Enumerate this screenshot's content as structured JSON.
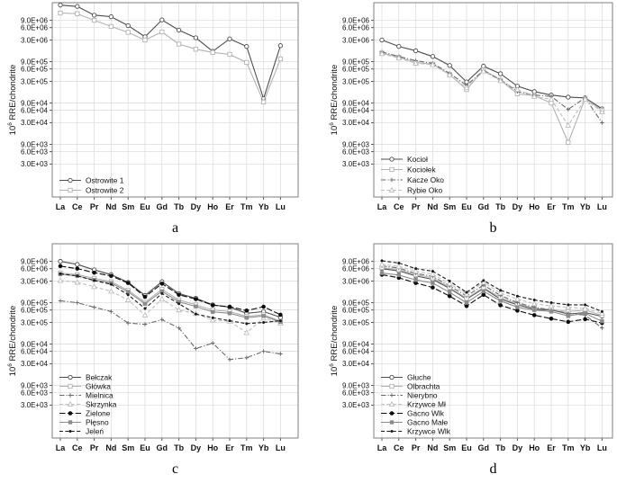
{
  "chart_data": {
    "type": "line",
    "scale": "log-y",
    "grid": true,
    "ylabel": {
      "base": "10",
      "sup": "6",
      "rest": " RRE/chondrite"
    },
    "categories": [
      "La",
      "Ce",
      "Pr",
      "Nd",
      "Sm",
      "Eu",
      "Gd",
      "Tb",
      "Dy",
      "Ho",
      "Er",
      "Tm",
      "Yb",
      "Lu"
    ],
    "y_tick_labels": [
      "9.0E+06",
      "6.0E+06",
      "3.0E+06",
      "9.0E+05",
      "6.0E+05",
      "3.0E+05",
      "9.0E+04",
      "6.0E+04",
      "3.0E+04",
      "9.0E+03",
      "6.0E+03",
      "3.0E+03"
    ],
    "y_axis_range": [
      480,
      24000000
    ],
    "legend_position": "bottom-left-inside",
    "colors": {
      "dark_gray": "#4d4d4d",
      "light_gray": "#b2b2b2",
      "mid_gray": "#6b6b6b",
      "pale_gray": "#bfbfbf",
      "black": "#0d0d0d",
      "filled_gray": "#8c8c8c",
      "grid": "#d9d9d9",
      "border": "#7f7f7f"
    },
    "panels": [
      {
        "caption": "a",
        "series": [
          {
            "name": "Ostrowite 1",
            "color": "#4d4d4d",
            "line": "solid",
            "marker": "circle-open",
            "values": [
              21000000.0,
              19500000.0,
              12000000.0,
              11000000.0,
              6700000.0,
              3600000.0,
              9200000.0,
              5200000.0,
              3400000.0,
              1600000.0,
              3200000.0,
              2100000.0,
              115000.0,
              2200000.0
            ]
          },
          {
            "name": "Ostrowite 2",
            "color": "#b2b2b2",
            "line": "solid",
            "marker": "square-open",
            "values": [
              13500000.0,
              13000000.0,
              9000000.0,
              6400000.0,
              4600000.0,
              3000000.0,
              4700000.0,
              2400000.0,
              1800000.0,
              1500000.0,
              1350000.0,
              860000.0,
              95000.0,
              1050000.0
            ]
          }
        ]
      },
      {
        "caption": "b",
        "series": [
          {
            "name": "Kocioł",
            "color": "#4d4d4d",
            "line": "solid",
            "marker": "circle-open",
            "values": [
              3000000.0,
              2100000.0,
              1650000.0,
              1200000.0,
              730000.0,
              290000.0,
              700000.0,
              460000.0,
              230000.0,
              170000.0,
              140000.0,
              125000.0,
              120000.0,
              65000.0
            ]
          },
          {
            "name": "Kociołek",
            "color": "#b2b2b2",
            "line": "solid",
            "marker": "square-open",
            "values": [
              1450000.0,
              1150000.0,
              860000.0,
              780000.0,
              440000.0,
              190000.0,
              570000.0,
              320000.0,
              150000.0,
              135000.0,
              90000.0,
              10000.0,
              115000.0,
              60000.0
            ]
          },
          {
            "name": "Kacze Oko",
            "color": "#6b6b6b",
            "line": "dashdot",
            "marker": "plus",
            "values": [
              1550000.0,
              1200000.0,
              950000.0,
              820000.0,
              470000.0,
              240000.0,
              550000.0,
              330000.0,
              170000.0,
              140000.0,
              130000.0,
              63000.0,
              120000.0,
              30000.0
            ]
          },
          {
            "name": "Rybie Oko",
            "color": "#bfbfbf",
            "line": "dashed",
            "marker": "triangle-open",
            "values": [
              1400000.0,
              1100000.0,
              820000.0,
              760000.0,
              430000.0,
              210000.0,
              530000.0,
              310000.0,
              190000.0,
              130000.0,
              110000.0,
              26000.0,
              110000.0,
              55000.0
            ]
          }
        ]
      },
      {
        "caption": "c",
        "series": [
          {
            "name": "Bełczak",
            "color": "#4d4d4d",
            "line": "solid",
            "marker": "circle-open",
            "values": [
              9000000.0,
              7600000.0,
              5600000.0,
              4300000.0,
              2800000.0,
              1350000.0,
              2900000.0,
              1500000.0,
              1150000.0,
              800000.0,
              700000.0,
              500000.0,
              550000.0,
              400000.0
            ]
          },
          {
            "name": "Główka",
            "color": "#b2b2b2",
            "line": "solid",
            "marker": "square-open",
            "values": [
              4700000.0,
              4300000.0,
              3500000.0,
              2900000.0,
              1800000.0,
              920000.0,
              1900000.0,
              1050000.0,
              800000.0,
              600000.0,
              550000.0,
              420000.0,
              460000.0,
              320000.0
            ]
          },
          {
            "name": "Mielnica",
            "color": "#6b6b6b",
            "line": "dashdot",
            "marker": "plus",
            "values": [
              1000000.0,
              900000.0,
              700000.0,
              550000.0,
              290000.0,
              270000.0,
              350000.0,
              220000.0,
              70000.0,
              95000.0,
              38000.0,
              42000.0,
              60000.0,
              52000.0
            ]
          },
          {
            "name": "Skrzynka",
            "color": "#bfbfbf",
            "line": "dashed",
            "marker": "triangle-open",
            "values": [
              3100000.0,
              2800000.0,
              2200000.0,
              1700000.0,
              1050000.0,
              450000.0,
              1100000.0,
              600000.0,
              490000.0,
              340000.0,
              320000.0,
              170000.0,
              380000.0,
              290000.0
            ]
          },
          {
            "name": "Zielone",
            "color": "#0d0d0d",
            "line": "longdash",
            "marker": "circle-filled",
            "values": [
              6900000.0,
              6000000.0,
              4800000.0,
              4000000.0,
              2700000.0,
              1250000.0,
              2600000.0,
              1400000.0,
              1100000.0,
              780000.0,
              720000.0,
              580000.0,
              720000.0,
              460000.0
            ]
          },
          {
            "name": "Płęsno",
            "color": "#8c8c8c",
            "line": "solid",
            "marker": "square-filled",
            "values": [
              4400000.0,
              4000000.0,
              3200000.0,
              2700000.0,
              1650000.0,
              850000.0,
              1700000.0,
              950000.0,
              730000.0,
              540000.0,
              500000.0,
              390000.0,
              430000.0,
              310000.0
            ]
          },
          {
            "name": "Jeleń",
            "color": "#1a1a1a",
            "line": "dashed",
            "marker": "dot",
            "values": [
              4500000.0,
              4000000.0,
              3100000.0,
              2500000.0,
              1400000.0,
              650000.0,
              1500000.0,
              850000.0,
              480000.0,
              390000.0,
              330000.0,
              280000.0,
              300000.0,
              330000.0
            ]
          }
        ]
      },
      {
        "caption": "d",
        "series": [
          {
            "name": "Głuche",
            "color": "#4d4d4d",
            "line": "solid",
            "marker": "circle-open",
            "values": [
              6000000.0,
              5300000.0,
              4000000.0,
              3300000.0,
              2000000.0,
              1100000.0,
              2000000.0,
              1100000.0,
              800000.0,
              630000.0,
              600000.0,
              480000.0,
              520000.0,
              420000.0
            ]
          },
          {
            "name": "Olbrachta",
            "color": "#b2b2b2",
            "line": "solid",
            "marker": "square-open",
            "values": [
              6400000.0,
              5700000.0,
              4300000.0,
              3600000.0,
              2100000.0,
              1150000.0,
              2100000.0,
              1200000.0,
              850000.0,
              660000.0,
              620000.0,
              550000.0,
              600000.0,
              440000.0
            ]
          },
          {
            "name": "Nierybno",
            "color": "#6b6b6b",
            "line": "dashdot",
            "marker": "plus",
            "values": [
              7000000.0,
              6200000.0,
              4600000.0,
              3900000.0,
              2300000.0,
              1300000.0,
              2400000.0,
              1350000.0,
              900000.0,
              700000.0,
              600000.0,
              500000.0,
              450000.0,
              220000.0
            ]
          },
          {
            "name": "Krzywce Mł",
            "color": "#bfbfbf",
            "line": "dashed",
            "marker": "triangle-open",
            "values": [
              7600000.0,
              6800000.0,
              5200000.0,
              4400000.0,
              2600000.0,
              1450000.0,
              2800000.0,
              1550000.0,
              1100000.0,
              850000.0,
              750000.0,
              700000.0,
              650000.0,
              500000.0
            ]
          },
          {
            "name": "Gacno Wlk",
            "color": "#0d0d0d",
            "line": "longdash",
            "marker": "circle-filled",
            "values": [
              4300000.0,
              3600000.0,
              2700000.0,
              2100000.0,
              1300000.0,
              750000.0,
              1400000.0,
              780000.0,
              580000.0,
              450000.0,
              370000.0,
              310000.0,
              360000.0,
              290000.0
            ]
          },
          {
            "name": "Gacno Małe",
            "color": "#8c8c8c",
            "line": "solid",
            "marker": "square-filled",
            "values": [
              4700000.0,
              4200000.0,
              3200000.0,
              2700000.0,
              1600000.0,
              900000.0,
              1700000.0,
              1000000.0,
              700000.0,
              600000.0,
              550000.0,
              430000.0,
              500000.0,
              320000.0
            ]
          },
          {
            "name": "Krzywce Wlk",
            "color": "#1a1a1a",
            "line": "dashed",
            "marker": "dot",
            "values": [
              9300000.0,
              8200000.0,
              6000000.0,
              5200000.0,
              3000000.0,
              1600000.0,
              3100000.0,
              1800000.0,
              1300000.0,
              1050000.0,
              900000.0,
              800000.0,
              800000.0,
              550000.0
            ]
          }
        ]
      }
    ]
  }
}
